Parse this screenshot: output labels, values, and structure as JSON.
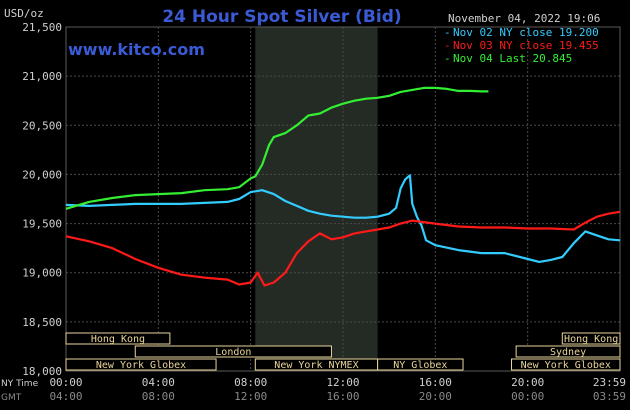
{
  "header": {
    "title": "24 Hour Spot Silver (Bid)",
    "units": "USD/oz",
    "website": "www.kitco.com",
    "datetime": "November 04, 2022 19:06"
  },
  "colors": {
    "background": "#000000",
    "grid": "#4a4a4a",
    "title": "#3b5bd6",
    "website": "#3b5bd6",
    "text": "#d0d0d0",
    "session_bar": "#e8d59a",
    "session_text": "#e8d59a",
    "shade": "#242a24"
  },
  "chart_data": {
    "type": "line",
    "ylabel": "USD/oz",
    "ylim": [
      18000,
      21500
    ],
    "yticks": [
      "18,000",
      "18,500",
      "19,000",
      "19,500",
      "20,000",
      "20,500",
      "21,000",
      "21,500"
    ],
    "ytick_values": [
      18000,
      18500,
      19000,
      19500,
      20000,
      20500,
      21000,
      21500
    ],
    "xlim": [
      0,
      24
    ],
    "xaxis_rows": [
      {
        "label": "NY Time",
        "ticks": [
          "00:00",
          "04:00",
          "08:00",
          "12:00",
          "16:00",
          "20:00",
          "23:59"
        ]
      },
      {
        "label": "GMT",
        "ticks": [
          "04:00",
          "08:00",
          "12:00",
          "16:00",
          "20:00",
          "00:00",
          "03:59"
        ]
      }
    ],
    "xtick_hours": [
      0,
      4,
      8,
      12,
      16,
      20,
      24
    ],
    "shaded_region_hours": [
      8.2,
      13.5
    ],
    "legend_position": "top-right",
    "series": [
      {
        "name": "Nov 02 NY close 19.200",
        "color": "#33ccff",
        "x": [
          0,
          1,
          2,
          3,
          4,
          5,
          6,
          7,
          7.5,
          8,
          8.5,
          9,
          9.5,
          10,
          10.5,
          11,
          11.5,
          12,
          12.5,
          13,
          13.5,
          14,
          14.3,
          14.5,
          14.7,
          14.9,
          15,
          15.2,
          15.4,
          15.6,
          16,
          17,
          18,
          19,
          20,
          20.5,
          21,
          21.5,
          22,
          22.5,
          23,
          23.5,
          24
        ],
        "values": [
          19690,
          19680,
          19690,
          19700,
          19700,
          19700,
          19710,
          19720,
          19750,
          19820,
          19840,
          19800,
          19730,
          19680,
          19630,
          19600,
          19580,
          19570,
          19560,
          19560,
          19570,
          19600,
          19660,
          19860,
          19950,
          19990,
          19700,
          19570,
          19480,
          19330,
          19280,
          19230,
          19200,
          19200,
          19140,
          19110,
          19130,
          19160,
          19300,
          19420,
          19380,
          19340,
          19330
        ]
      },
      {
        "name": "Nov 03 NY close 19.455",
        "color": "#ff1a1a",
        "x": [
          0,
          1,
          2,
          3,
          4,
          5,
          6,
          7,
          7.5,
          8,
          8.3,
          8.6,
          9,
          9.5,
          10,
          10.5,
          11,
          11.5,
          12,
          12.5,
          13,
          13.5,
          14,
          14.5,
          15,
          16,
          17,
          18,
          19,
          20,
          21,
          22,
          22.5,
          23,
          23.5,
          24
        ],
        "values": [
          19370,
          19320,
          19250,
          19140,
          19050,
          18980,
          18950,
          18930,
          18880,
          18900,
          19000,
          18870,
          18900,
          19000,
          19200,
          19320,
          19400,
          19340,
          19360,
          19400,
          19420,
          19440,
          19460,
          19500,
          19530,
          19500,
          19470,
          19460,
          19460,
          19450,
          19450,
          19440,
          19510,
          19570,
          19600,
          19620
        ]
      },
      {
        "name": "Nov 04 Last 20.845",
        "color": "#33ee33",
        "x": [
          0,
          1,
          2,
          3,
          4,
          5,
          6,
          7,
          7.5,
          8,
          8.2,
          8.5,
          8.8,
          9,
          9.5,
          10,
          10.5,
          11,
          11.5,
          12,
          12.5,
          13,
          13.5,
          14,
          14.5,
          15,
          15.5,
          16,
          16.5,
          17,
          17.5,
          18,
          18.3
        ],
        "values": [
          19650,
          19720,
          19760,
          19790,
          19800,
          19810,
          19840,
          19850,
          19870,
          19960,
          19980,
          20100,
          20300,
          20380,
          20420,
          20500,
          20600,
          20620,
          20680,
          20720,
          20750,
          20770,
          20780,
          20800,
          20840,
          20860,
          20880,
          20880,
          20870,
          20850,
          20850,
          20845,
          20845
        ]
      }
    ]
  },
  "sessions": {
    "asia": [
      {
        "label": "Hong Kong",
        "hours": [
          0,
          4.5
        ]
      },
      {
        "label": "Hong Kong",
        "hours": [
          21.5,
          24
        ]
      }
    ],
    "europe": [
      {
        "label": "London",
        "hours": [
          3.0,
          11.5
        ]
      },
      {
        "label": "Sydney",
        "hours": [
          19.5,
          24
        ]
      }
    ],
    "ny": [
      {
        "label": "New York Globex",
        "hours": [
          0,
          6.5
        ]
      },
      {
        "label": "New York NYMEX",
        "hours": [
          8.2,
          13.5
        ]
      },
      {
        "label": "NY Globex",
        "hours": [
          13.5,
          17.2
        ]
      },
      {
        "label": "New York Globex",
        "hours": [
          19.3,
          24
        ]
      }
    ]
  }
}
